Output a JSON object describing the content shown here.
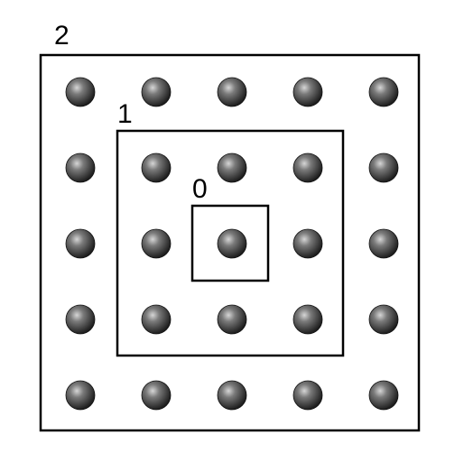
{
  "shells": [
    {
      "label": "2"
    },
    {
      "label": "1"
    },
    {
      "label": "0"
    }
  ],
  "grid": {
    "rows": 5,
    "cols": 5
  },
  "colors": {
    "sphere_light": "#c9c9c9",
    "sphere_mid": "#6a6a6a",
    "sphere_dark": "#1e1e1e",
    "stroke": "#000000"
  }
}
